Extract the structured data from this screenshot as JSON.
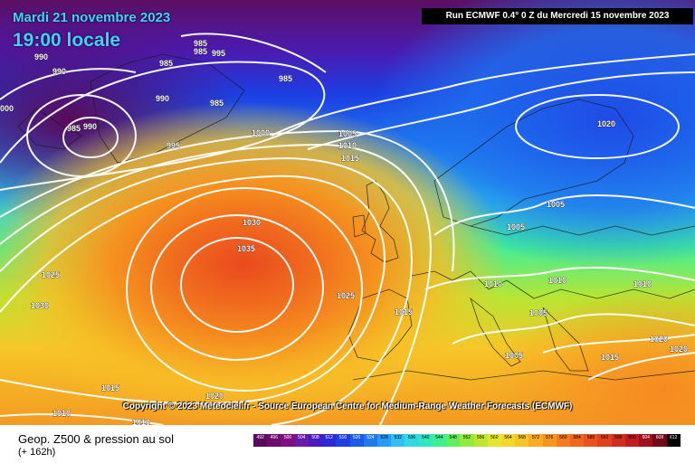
{
  "header": {
    "date_text": "Mardi 21 novembre 2023",
    "time_text": "19:00 locale",
    "run_text": "Run ECMWF 0.4° 0 Z du Mercredi 15 novembre 2023"
  },
  "copyright": "Copyright © 2023 Meteociel.fr - Source European Centre for Medium-Range Weather Forecasts (ECMWF)",
  "footer": {
    "title": "Geop. Z500 & pression au sol",
    "subtitle": "(+ 162h)"
  },
  "legend": {
    "values": [
      "492",
      "496",
      "500",
      "504",
      "508",
      "512",
      "516",
      "520",
      "524",
      "528",
      "532",
      "536",
      "540",
      "544",
      "548",
      "552",
      "556",
      "560",
      "564",
      "568",
      "572",
      "576",
      "580",
      "584",
      "588",
      "592",
      "596",
      "600",
      "604",
      "608",
      "612"
    ],
    "colors": [
      "#5c0a5c",
      "#6e0c6e",
      "#7e1080",
      "#6a1aa8",
      "#4a1cc0",
      "#2c28d4",
      "#1f3fe0",
      "#1e5ae8",
      "#1e7af0",
      "#2a9af4",
      "#30bff0",
      "#30d8e0",
      "#30e8c0",
      "#40f090",
      "#60ee60",
      "#90ea40",
      "#c0e630",
      "#e6e62e",
      "#f2d82a",
      "#f6c428",
      "#f8ac24",
      "#f69422",
      "#f47c20",
      "#f0661e",
      "#ea521e",
      "#e0401e",
      "#d02c20",
      "#c01c20",
      "#a01020",
      "#700818",
      "#000000"
    ]
  },
  "isobars": [
    {
      "text": "990"
    },
    {
      "text": "990"
    },
    {
      "text": "985"
    },
    {
      "text": "985"
    },
    {
      "text": "985"
    },
    {
      "text": "995"
    },
    {
      "text": "985"
    },
    {
      "text": "990"
    },
    {
      "text": "985"
    },
    {
      "text": "000"
    },
    {
      "text": "985"
    },
    {
      "text": "990"
    },
    {
      "text": "995"
    },
    {
      "text": "1000"
    },
    {
      "text": "1005"
    },
    {
      "text": "1010"
    },
    {
      "text": "1015"
    },
    {
      "text": "1020"
    },
    {
      "text": "1030"
    },
    {
      "text": "1035"
    },
    {
      "text": "1025"
    },
    {
      "text": "1030"
    },
    {
      "text": "1025"
    },
    {
      "text": "1015"
    },
    {
      "text": "1005"
    },
    {
      "text": "1005"
    },
    {
      "text": "1010"
    },
    {
      "text": "1010"
    },
    {
      "text": "1010"
    },
    {
      "text": "1005"
    },
    {
      "text": "1005"
    },
    {
      "text": "1015"
    },
    {
      "text": "1020"
    },
    {
      "text": "1020"
    },
    {
      "text": "1015"
    },
    {
      "text": "1010"
    },
    {
      "text": "1010"
    },
    {
      "text": "1020"
    }
  ]
}
